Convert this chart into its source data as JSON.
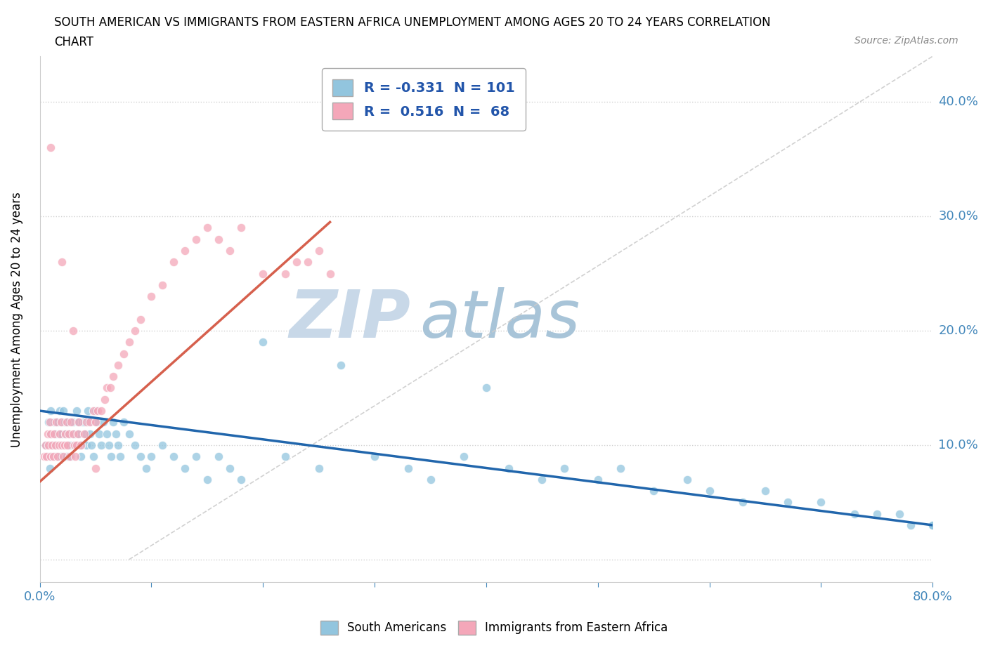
{
  "title_line1": "SOUTH AMERICAN VS IMMIGRANTS FROM EASTERN AFRICA UNEMPLOYMENT AMONG AGES 20 TO 24 YEARS CORRELATION",
  "title_line2": "CHART",
  "source": "Source: ZipAtlas.com",
  "ylabel": "Unemployment Among Ages 20 to 24 years",
  "xlim": [
    0.0,
    0.8
  ],
  "ylim": [
    -0.02,
    0.44
  ],
  "xticks": [
    0.0,
    0.1,
    0.2,
    0.3,
    0.4,
    0.5,
    0.6,
    0.7,
    0.8
  ],
  "yticks": [
    0.0,
    0.1,
    0.2,
    0.3,
    0.4
  ],
  "blue_R": -0.331,
  "blue_N": 101,
  "pink_R": 0.516,
  "pink_N": 68,
  "blue_color": "#92c5de",
  "pink_color": "#f4a7b9",
  "blue_line_color": "#2166ac",
  "pink_line_color": "#d6604d",
  "ref_line_color": "#cccccc",
  "watermark_zip": "ZIP",
  "watermark_atlas": "atlas",
  "watermark_color_zip": "#c8d8e8",
  "watermark_color_atlas": "#a8c4d8",
  "legend_blue_label": "R = -0.331  N = 101",
  "legend_pink_label": "R =  0.516  N =  68",
  "background_color": "#ffffff",
  "grid_color": "#cccccc",
  "blue_scatter_x": [
    0.005,
    0.007,
    0.008,
    0.009,
    0.01,
    0.01,
    0.01,
    0.01,
    0.012,
    0.013,
    0.014,
    0.015,
    0.015,
    0.016,
    0.017,
    0.018,
    0.018,
    0.019,
    0.02,
    0.02,
    0.02,
    0.021,
    0.022,
    0.023,
    0.023,
    0.024,
    0.025,
    0.026,
    0.027,
    0.028,
    0.03,
    0.031,
    0.032,
    0.033,
    0.034,
    0.035,
    0.036,
    0.037,
    0.038,
    0.04,
    0.041,
    0.042,
    0.043,
    0.044,
    0.045,
    0.046,
    0.048,
    0.05,
    0.051,
    0.053,
    0.055,
    0.057,
    0.06,
    0.062,
    0.064,
    0.066,
    0.068,
    0.07,
    0.072,
    0.075,
    0.08,
    0.085,
    0.09,
    0.095,
    0.1,
    0.11,
    0.12,
    0.13,
    0.14,
    0.15,
    0.16,
    0.17,
    0.18,
    0.2,
    0.22,
    0.25,
    0.27,
    0.3,
    0.33,
    0.35,
    0.38,
    0.4,
    0.42,
    0.45,
    0.47,
    0.5,
    0.52,
    0.55,
    0.58,
    0.6,
    0.63,
    0.65,
    0.67,
    0.7,
    0.73,
    0.75,
    0.77,
    0.78,
    0.8,
    0.8,
    0.8
  ],
  "blue_scatter_y": [
    0.1,
    0.09,
    0.12,
    0.08,
    0.11,
    0.1,
    0.09,
    0.13,
    0.1,
    0.12,
    0.11,
    0.1,
    0.09,
    0.12,
    0.11,
    0.13,
    0.1,
    0.09,
    0.12,
    0.11,
    0.1,
    0.13,
    0.12,
    0.11,
    0.1,
    0.09,
    0.12,
    0.11,
    0.1,
    0.09,
    0.12,
    0.11,
    0.1,
    0.13,
    0.12,
    0.11,
    0.1,
    0.09,
    0.12,
    0.12,
    0.11,
    0.1,
    0.13,
    0.12,
    0.11,
    0.1,
    0.09,
    0.13,
    0.12,
    0.11,
    0.1,
    0.12,
    0.11,
    0.1,
    0.09,
    0.12,
    0.11,
    0.1,
    0.09,
    0.12,
    0.11,
    0.1,
    0.09,
    0.08,
    0.09,
    0.1,
    0.09,
    0.08,
    0.09,
    0.07,
    0.09,
    0.08,
    0.07,
    0.19,
    0.09,
    0.08,
    0.17,
    0.09,
    0.08,
    0.07,
    0.09,
    0.15,
    0.08,
    0.07,
    0.08,
    0.07,
    0.08,
    0.06,
    0.07,
    0.06,
    0.05,
    0.06,
    0.05,
    0.05,
    0.04,
    0.04,
    0.04,
    0.03,
    0.03,
    0.03,
    0.03
  ],
  "pink_scatter_x": [
    0.004,
    0.005,
    0.006,
    0.007,
    0.008,
    0.009,
    0.01,
    0.01,
    0.011,
    0.012,
    0.013,
    0.014,
    0.015,
    0.016,
    0.017,
    0.018,
    0.019,
    0.02,
    0.021,
    0.022,
    0.023,
    0.024,
    0.025,
    0.026,
    0.027,
    0.028,
    0.03,
    0.031,
    0.032,
    0.033,
    0.034,
    0.035,
    0.037,
    0.04,
    0.042,
    0.045,
    0.048,
    0.05,
    0.052,
    0.055,
    0.058,
    0.06,
    0.063,
    0.066,
    0.07,
    0.075,
    0.08,
    0.085,
    0.09,
    0.1,
    0.11,
    0.12,
    0.13,
    0.14,
    0.15,
    0.16,
    0.17,
    0.18,
    0.2,
    0.22,
    0.23,
    0.24,
    0.25,
    0.26,
    0.01,
    0.02,
    0.03,
    0.05
  ],
  "pink_scatter_y": [
    0.09,
    0.1,
    0.09,
    0.11,
    0.1,
    0.12,
    0.09,
    0.11,
    0.1,
    0.09,
    0.11,
    0.1,
    0.12,
    0.09,
    0.1,
    0.11,
    0.12,
    0.1,
    0.09,
    0.1,
    0.11,
    0.12,
    0.1,
    0.11,
    0.09,
    0.12,
    0.11,
    0.1,
    0.09,
    0.1,
    0.11,
    0.12,
    0.1,
    0.11,
    0.12,
    0.12,
    0.13,
    0.12,
    0.13,
    0.13,
    0.14,
    0.15,
    0.15,
    0.16,
    0.17,
    0.18,
    0.19,
    0.2,
    0.21,
    0.23,
    0.24,
    0.26,
    0.27,
    0.28,
    0.29,
    0.28,
    0.27,
    0.29,
    0.25,
    0.25,
    0.26,
    0.26,
    0.27,
    0.25,
    0.36,
    0.26,
    0.2,
    0.08
  ]
}
